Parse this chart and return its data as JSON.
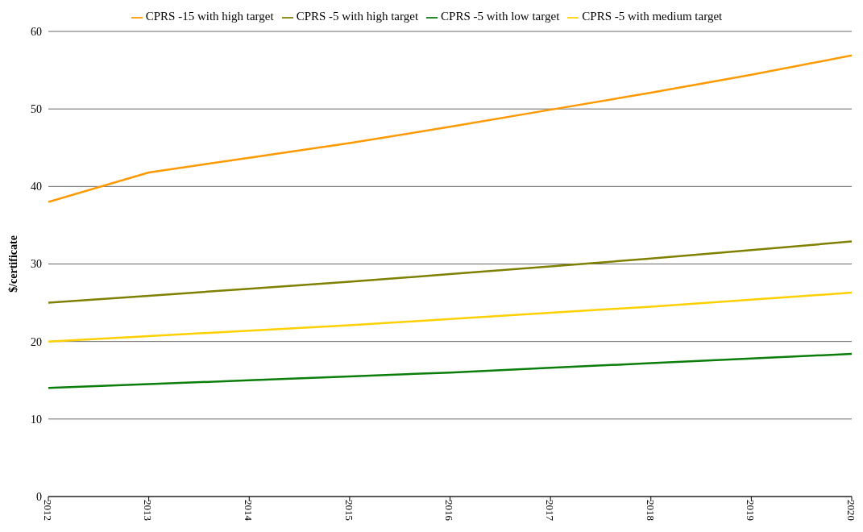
{
  "chart_data": {
    "type": "line",
    "ylabel": "$/certificate",
    "x": [
      2012,
      2013,
      2014,
      2015,
      2016,
      2017,
      2018,
      2019,
      2020
    ],
    "series": [
      {
        "name": "CPRS -5 with low target",
        "color": "#0a7d0a",
        "values": [
          14,
          14.5,
          15,
          15.5,
          16,
          16.6,
          17.2,
          17.8,
          18.4
        ]
      },
      {
        "name": "CPRS -5 with medium target",
        "color": "#ffd000",
        "values": [
          20,
          20.7,
          21.4,
          22.1,
          22.9,
          23.7,
          24.5,
          25.4,
          26.3
        ]
      },
      {
        "name": "CPRS -5 with high target",
        "color": "#808000",
        "values": [
          25,
          25.9,
          26.8,
          27.7,
          28.7,
          29.7,
          30.7,
          31.8,
          32.9
        ]
      },
      {
        "name": "CPRS -15 with high target",
        "color": "#ff9900",
        "values": [
          38,
          41.8,
          43.7,
          45.6,
          47.7,
          49.9,
          52.1,
          54.4,
          56.9
        ]
      }
    ],
    "xlim": [
      2012,
      2020
    ],
    "xticks": [
      2012,
      2013,
      2014,
      2015,
      2016,
      2017,
      2018,
      2019,
      2020
    ],
    "ylim": [
      0,
      60
    ],
    "yticks": [
      0,
      10,
      20,
      30,
      40,
      50,
      60
    ],
    "grid": "y",
    "legend": "top",
    "marker": "none",
    "line_style": "solid"
  }
}
